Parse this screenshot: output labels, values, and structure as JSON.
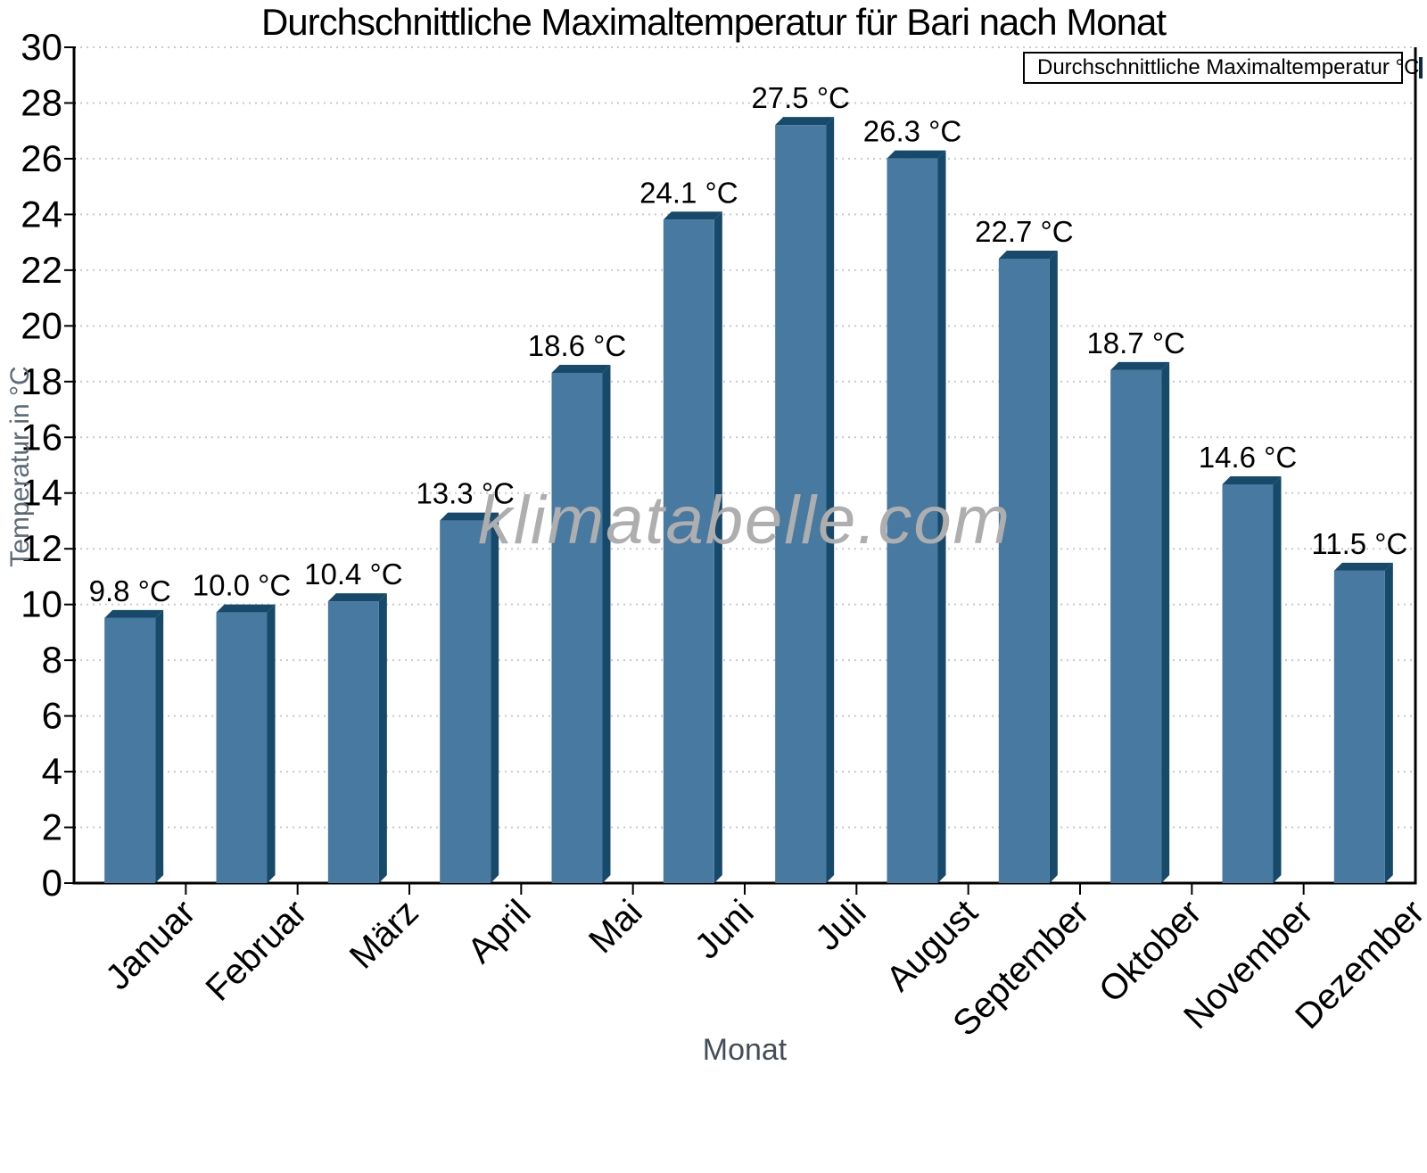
{
  "watermark": "klimatabelle.com",
  "legend": {
    "position": "top-right"
  },
  "colors": {
    "bar_face": "#4779A1",
    "bar_side": "#17496B",
    "grid_line": "#c9c9c9",
    "axis": "#000000",
    "tick_label": "#000000",
    "watermark_gray": "#aeaeae",
    "axis_title_gray": "#5c6a78"
  },
  "chart_data": {
    "type": "bar",
    "title": "Durchschnittliche Maximaltemperatur für Bari nach Monat",
    "xlabel": "Monat",
    "ylabel": "Temperatur in °C",
    "categories": [
      "Januar",
      "Februar",
      "März",
      "April",
      "Mai",
      "Juni",
      "Juli",
      "August",
      "September",
      "Oktober",
      "November",
      "Dezember"
    ],
    "series": [
      {
        "name": "Durchschnittliche Maximaltemperatur °C",
        "values": [
          9.8,
          10.0,
          10.4,
          13.3,
          18.6,
          24.1,
          27.5,
          26.3,
          22.7,
          18.7,
          14.6,
          11.5
        ],
        "labels": [
          "9.8 °C",
          "10.0 °C",
          "10.4 °C",
          "13.3 °C",
          "18.6 °C",
          "24.1 °C",
          "27.5 °C",
          "26.3 °C",
          "22.7 °C",
          "18.7 °C",
          "14.6 °C",
          "11.5 °C"
        ]
      }
    ],
    "ylim": [
      0,
      30
    ],
    "ytick_step": 2,
    "yticks": [
      0,
      2,
      4,
      6,
      8,
      10,
      12,
      14,
      16,
      18,
      20,
      22,
      24,
      26,
      28,
      30
    ],
    "grid": "horizontal-dotted",
    "legend_position": "top-right"
  }
}
